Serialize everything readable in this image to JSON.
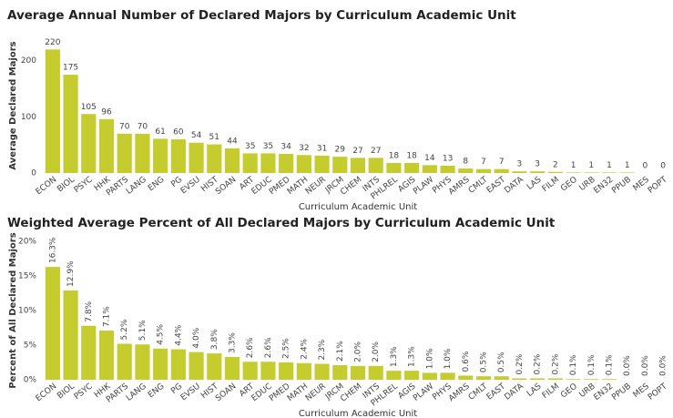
{
  "chart_data": [
    {
      "type": "bar",
      "title": "Average Annual Number of Declared Majors by Curriculum Academic Unit",
      "x_label": "Curriculum Academic Unit",
      "y_label": "Average Declared Majors",
      "categories": [
        "ECON",
        "BIOL",
        "PSYC",
        "HHK",
        "PARTS",
        "LANG",
        "ENG",
        "PG",
        "EVSU",
        "HIST",
        "SOAN",
        "ART",
        "EDUC",
        "PMED",
        "MATH",
        "NEUR",
        "JRCM",
        "CHEM",
        "INTS",
        "PHLREL",
        "AGIS",
        "PLAW",
        "PHYS",
        "AMRS",
        "CMLT",
        "EAST",
        "DATA",
        "LAS",
        "FILM",
        "GEO",
        "URB",
        "EN32",
        "PPUB",
        "MES",
        "POPT"
      ],
      "values": [
        220,
        175,
        105,
        96,
        70,
        70,
        61,
        60,
        54,
        51,
        44,
        35,
        35,
        34,
        32,
        31,
        29,
        27,
        27,
        18,
        18,
        14,
        13,
        8,
        7,
        7,
        3,
        3,
        2,
        1,
        1,
        1,
        1,
        0,
        0
      ],
      "color": "#c4cc2e",
      "ylim": [
        0,
        240
      ],
      "yticks": [
        0,
        100,
        200
      ],
      "grid": false
    },
    {
      "type": "bar",
      "title": "Weighted Average Percent of All Declared Majors by Curriculum Academic Unit",
      "x_label": "Curriculum Academic Unit",
      "y_label": "Percent of All Declared Majors",
      "categories": [
        "ECON",
        "BIOL",
        "PSYC",
        "HHK",
        "PARTS",
        "LANG",
        "ENG",
        "PG",
        "EVSU",
        "HIST",
        "SOAN",
        "ART",
        "EDUC",
        "PMED",
        "MATH",
        "NEUR",
        "JRCM",
        "CHEM",
        "INTS",
        "PHLREL",
        "AGIS",
        "PLAW",
        "PHYS",
        "AMRS",
        "CMLT",
        "EAST",
        "DATA",
        "LAS",
        "FILM",
        "GEO",
        "URB",
        "EN32",
        "PPUB",
        "MES",
        "POPT"
      ],
      "values": [
        16.3,
        12.9,
        7.8,
        7.1,
        5.2,
        5.1,
        4.5,
        4.4,
        4.0,
        3.8,
        3.3,
        2.6,
        2.6,
        2.5,
        2.4,
        2.3,
        2.1,
        2.0,
        2.0,
        1.3,
        1.3,
        1.0,
        1.0,
        0.6,
        0.5,
        0.5,
        0.2,
        0.2,
        0.2,
        0.1,
        0.1,
        0.1,
        0.0,
        0.0,
        0.0
      ],
      "value_labels": [
        "16.3%",
        "12.9%",
        "7.8%",
        "7.1%",
        "5.2%",
        "5.1%",
        "4.5%",
        "4.4%",
        "4.0%",
        "3.8%",
        "3.3%",
        "2.6%",
        "2.6%",
        "2.5%",
        "2.4%",
        "2.3%",
        "2.1%",
        "2.0%",
        "2.0%",
        "1.3%",
        "1.3%",
        "1.0%",
        "1.0%",
        "0.6%",
        "0.5%",
        "0.5%",
        "0.2%",
        "0.2%",
        "0.2%",
        "0.1%",
        "0.1%",
        "0.1%",
        "0.0%",
        "0.0%",
        "0.0%"
      ],
      "color": "#c4cc2e",
      "ylim": [
        0,
        20
      ],
      "yticks": [
        {
          "value": 0,
          "label": "0%"
        },
        {
          "value": 5,
          "label": "5%"
        },
        {
          "value": 10,
          "label": "10%"
        },
        {
          "value": 15,
          "label": "15%"
        },
        {
          "value": 20,
          "label": "20%"
        }
      ],
      "grid": false
    }
  ]
}
